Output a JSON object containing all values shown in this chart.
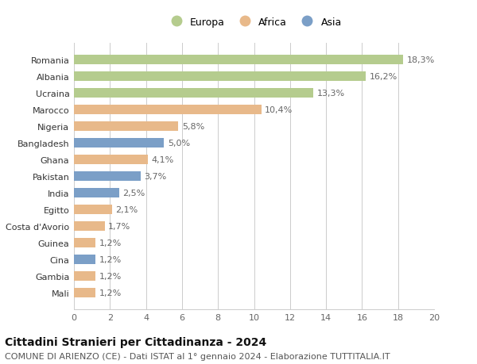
{
  "countries": [
    "Romania",
    "Albania",
    "Ucraina",
    "Marocco",
    "Nigeria",
    "Bangladesh",
    "Ghana",
    "Pakistan",
    "India",
    "Egitto",
    "Costa d'Avorio",
    "Guinea",
    "Cina",
    "Gambia",
    "Mali"
  ],
  "values": [
    18.3,
    16.2,
    13.3,
    10.4,
    5.8,
    5.0,
    4.1,
    3.7,
    2.5,
    2.1,
    1.7,
    1.2,
    1.2,
    1.2,
    1.2
  ],
  "labels": [
    "18,3%",
    "16,2%",
    "13,3%",
    "10,4%",
    "5,8%",
    "5,0%",
    "4,1%",
    "3,7%",
    "2,5%",
    "2,1%",
    "1,7%",
    "1,2%",
    "1,2%",
    "1,2%",
    "1,2%"
  ],
  "continents": [
    "Europa",
    "Europa",
    "Europa",
    "Africa",
    "Africa",
    "Asia",
    "Africa",
    "Asia",
    "Asia",
    "Africa",
    "Africa",
    "Africa",
    "Asia",
    "Africa",
    "Africa"
  ],
  "colors": {
    "Europa": "#b5cc8e",
    "Africa": "#e8b98a",
    "Asia": "#7b9fc7"
  },
  "legend_labels": [
    "Europa",
    "Africa",
    "Asia"
  ],
  "title": "Cittadini Stranieri per Cittadinanza - 2024",
  "subtitle": "COMUNE DI ARIENZO (CE) - Dati ISTAT al 1° gennaio 2024 - Elaborazione TUTTITALIA.IT",
  "xlim": [
    0,
    20
  ],
  "xticks": [
    0,
    2,
    4,
    6,
    8,
    10,
    12,
    14,
    16,
    18,
    20
  ],
  "background_color": "#ffffff",
  "grid_color": "#cccccc",
  "bar_height": 0.55,
  "title_fontsize": 10,
  "subtitle_fontsize": 8,
  "label_fontsize": 8,
  "tick_fontsize": 8,
  "country_fontsize": 8
}
